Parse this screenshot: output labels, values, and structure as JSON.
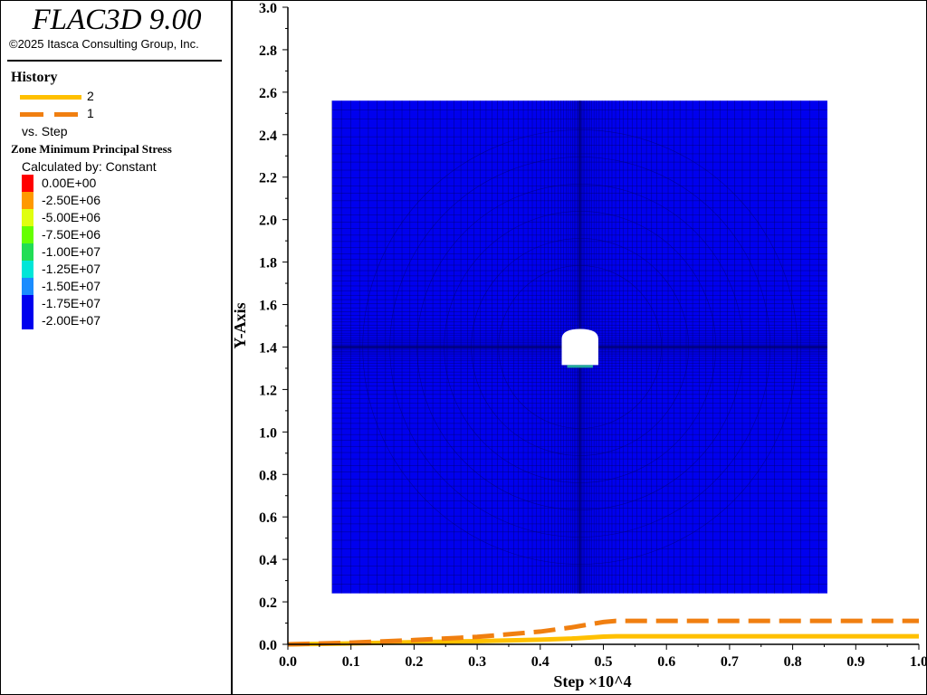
{
  "app": {
    "title": "FLAC3D 9.00",
    "copyright": "©2025 Itasca Consulting Group, Inc."
  },
  "history": {
    "title": "History",
    "items": [
      {
        "label": "2",
        "color": "#FFC000",
        "style": "solid"
      },
      {
        "label": "1",
        "color": "#F07F10",
        "style": "dashed"
      }
    ],
    "vs_label": "vs. Step"
  },
  "contour": {
    "title": "Zone Minimum Principal Stress",
    "calculated_by": "Calculated by: Constant",
    "scale": [
      {
        "label": "0.00E+00",
        "color": "#FF0000"
      },
      {
        "label": "-2.50E+06",
        "color": "#FF9900"
      },
      {
        "label": "-5.00E+06",
        "color": "#E0FF10"
      },
      {
        "label": "-7.50E+06",
        "color": "#66FF00"
      },
      {
        "label": "-1.00E+07",
        "color": "#22DD55"
      },
      {
        "label": "-1.25E+07",
        "color": "#00E6D8"
      },
      {
        "label": "-1.50E+07",
        "color": "#1A8CFF"
      },
      {
        "label": "-1.75E+07",
        "color": "#0000EE"
      },
      {
        "label": "-2.00E+07",
        "color": "#0000EE"
      }
    ]
  },
  "chart_data": {
    "type": "line",
    "xlabel": "Step ×10^4",
    "ylabel": "Y-Axis",
    "xlim": [
      0.0,
      1.0
    ],
    "ylim": [
      0.0,
      3.0
    ],
    "x_ticks": [
      "0.0",
      "0.1",
      "0.2",
      "0.3",
      "0.4",
      "0.5",
      "0.6",
      "0.7",
      "0.8",
      "0.9",
      "1.0"
    ],
    "y_ticks": [
      "0.0",
      "0.2",
      "0.4",
      "0.6",
      "0.8",
      "1.0",
      "1.2",
      "1.4",
      "1.6",
      "1.8",
      "2.0",
      "2.2",
      "2.4",
      "2.6",
      "2.8",
      "3.0"
    ],
    "series": [
      {
        "name": "2",
        "color": "#FFC000",
        "style": "solid",
        "x": [
          0.0,
          0.1,
          0.2,
          0.3,
          0.4,
          0.45,
          0.5,
          0.52,
          0.6,
          0.7,
          0.8,
          0.9,
          1.0
        ],
        "y": [
          0.0,
          0.004,
          0.01,
          0.015,
          0.022,
          0.027,
          0.036,
          0.038,
          0.038,
          0.038,
          0.038,
          0.038,
          0.038
        ]
      },
      {
        "name": "1",
        "color": "#F07F10",
        "style": "dashed",
        "x": [
          0.0,
          0.1,
          0.2,
          0.3,
          0.4,
          0.45,
          0.5,
          0.52,
          0.6,
          0.7,
          0.8,
          0.9,
          1.0
        ],
        "y": [
          0.0,
          0.008,
          0.02,
          0.035,
          0.06,
          0.08,
          0.105,
          0.11,
          0.11,
          0.11,
          0.11,
          0.11,
          0.11
        ]
      }
    ],
    "model_image": {
      "x_range": [
        0.07,
        0.855
      ],
      "y_range": [
        0.24,
        2.56
      ],
      "fill_color": "#0000EE",
      "mesh_color": "#000066",
      "opening_center": [
        0.463,
        1.4
      ],
      "opening_width": 0.058,
      "opening_height": 0.17,
      "opening_fill": "#FFFFFF",
      "opening_rim_color": "#22AA99"
    }
  }
}
